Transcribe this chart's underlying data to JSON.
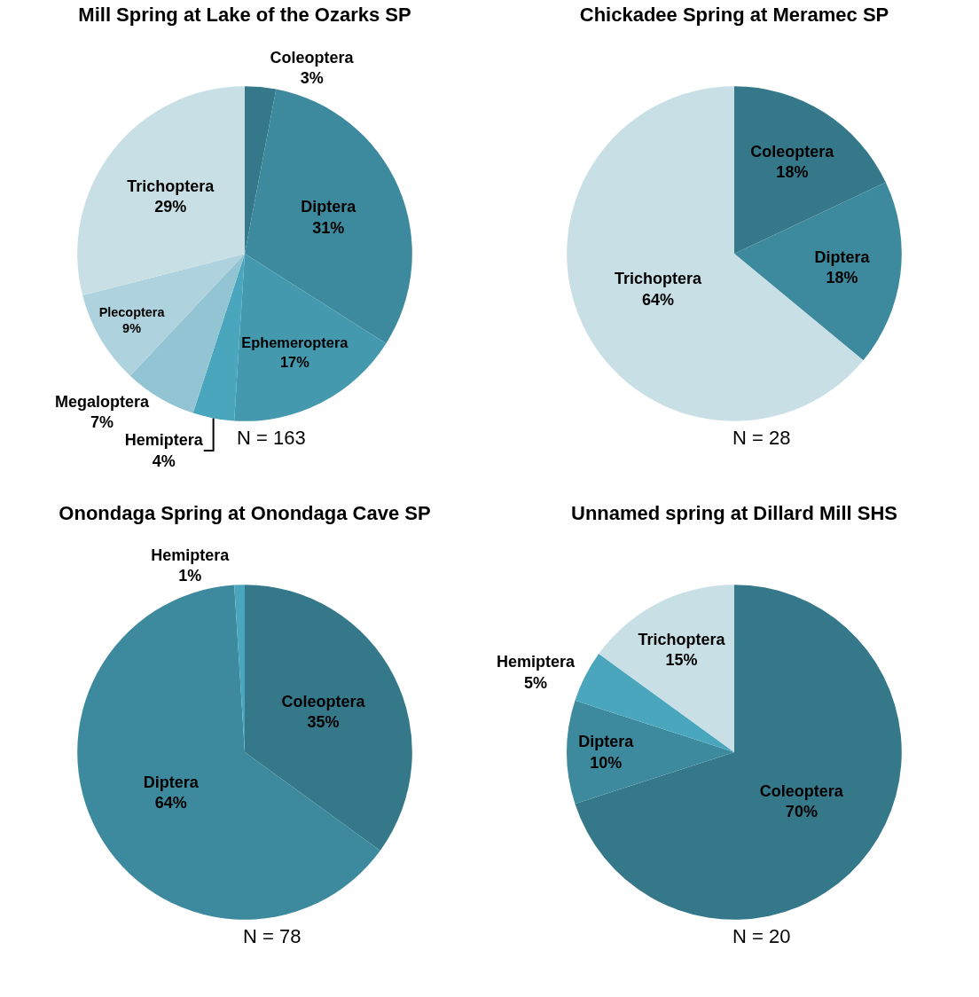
{
  "chart_data": [
    {
      "type": "pie",
      "title": "Mill Spring at Lake of the Ozarks SP",
      "categories": [
        "Coleoptera",
        "Diptera",
        "Ephemeroptera",
        "Hemiptera",
        "Megaloptera",
        "Plecoptera",
        "Trichoptera"
      ],
      "values": [
        3,
        31,
        17,
        4,
        7,
        9,
        29
      ],
      "value_labels": [
        "3%",
        "31%",
        "17%",
        "4%",
        "7%",
        "9%",
        "29%"
      ],
      "colors": [
        "#35788a",
        "#3d8a9e",
        "#4599ae",
        "#4aa6bd",
        "#93c4d3",
        "#aed2de",
        "#c8dfe6"
      ],
      "annotations": [
        "N = 163"
      ],
      "legend": false
    },
    {
      "type": "pie",
      "title": "Chickadee Spring at Meramec SP",
      "categories": [
        "Coleoptera",
        "Diptera",
        "Trichoptera"
      ],
      "values": [
        18,
        18,
        64
      ],
      "value_labels": [
        "18%",
        "18%",
        "64%"
      ],
      "colors": [
        "#35788a",
        "#3d8a9e",
        "#c8dfe6"
      ],
      "annotations": [
        "N = 28"
      ],
      "legend": false
    },
    {
      "type": "pie",
      "title": "Onondaga Spring at Onondaga Cave SP",
      "categories": [
        "Coleoptera",
        "Diptera",
        "Hemiptera"
      ],
      "values": [
        35,
        64,
        1
      ],
      "value_labels": [
        "35%",
        "64%",
        "1%"
      ],
      "colors": [
        "#35788a",
        "#3d8a9e",
        "#4aa6bd"
      ],
      "annotations": [
        "N = 78"
      ],
      "legend": false
    },
    {
      "type": "pie",
      "title": "Unnamed spring at Dillard Mill SHS",
      "categories": [
        "Coleoptera",
        "Diptera",
        "Hemiptera",
        "Trichoptera"
      ],
      "values": [
        70,
        10,
        5,
        15
      ],
      "value_labels": [
        "70%",
        "10%",
        "5%",
        "15%"
      ],
      "colors": [
        "#35788a",
        "#3d8a9e",
        "#4aa6bd",
        "#c8dfe6"
      ],
      "annotations": [
        "N = 20"
      ],
      "legend": false
    }
  ]
}
